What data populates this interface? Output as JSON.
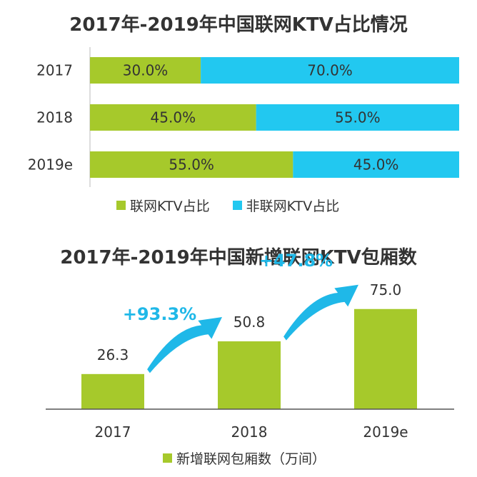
{
  "colors": {
    "green": "#a6c92b",
    "blue": "#22c8f0",
    "arrow": "#1fb8e8",
    "growth_text": "#1fb8e8",
    "text": "#333333"
  },
  "chart_data": [
    {
      "type": "bar",
      "orientation": "horizontal",
      "stacked": true,
      "title": "2017年-2019年中国联网KTV占比情况",
      "categories": [
        "2017",
        "2018",
        "2019e"
      ],
      "series": [
        {
          "name": "联网KTV占比",
          "values": [
            30.0,
            45.0,
            55.0
          ],
          "labels": [
            "30.0%",
            "45.0%",
            "55.0%"
          ]
        },
        {
          "name": "非联网KTV占比",
          "values": [
            70.0,
            55.0,
            45.0
          ],
          "labels": [
            "70.0%",
            "55.0%",
            "45.0%"
          ]
        }
      ],
      "xlim": [
        0,
        100
      ],
      "legend": "bottom"
    },
    {
      "type": "bar",
      "title": "2017年-2019年中国新增联网KTV包厢数",
      "categories": [
        "2017",
        "2018",
        "2019e"
      ],
      "series": [
        {
          "name": "新增联网包厢数（万间）",
          "values": [
            26.3,
            50.8,
            75.0
          ],
          "labels": [
            "26.3",
            "50.8",
            "75.0"
          ]
        }
      ],
      "ylim": [
        0,
        100
      ],
      "annotations": [
        {
          "text": "+93.3%",
          "from": "2017",
          "to": "2018"
        },
        {
          "text": "+47.8%",
          "from": "2018",
          "to": "2019e"
        }
      ],
      "legend": "bottom"
    }
  ]
}
